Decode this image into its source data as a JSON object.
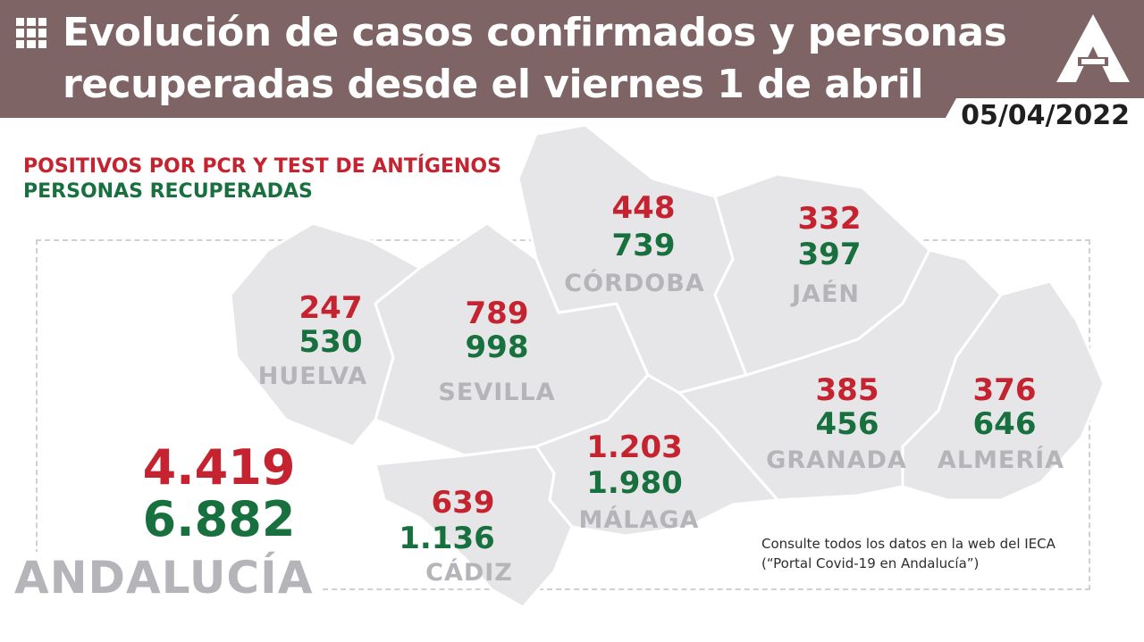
{
  "header": {
    "title": "Evolución de casos confirmados y personas recuperadas desde el viernes 1 de abril",
    "date": "05/04/2022",
    "menu_icon": "grid-icon",
    "logo_icon": "junta-andalucia-logo-icon"
  },
  "legend": {
    "positives": "POSITIVOS POR PCR Y TEST DE ANTÍGENOS",
    "recovered": "PERSONAS RECUPERADAS"
  },
  "colors": {
    "header": "#7e6464",
    "positives": "#c4232f",
    "recovered": "#17703d",
    "map": "#e6e6e8",
    "label": "#b4b4b9"
  },
  "provinces": {
    "huelva": {
      "name": "HUELVA",
      "positives": "247",
      "recovered": "530"
    },
    "sevilla": {
      "name": "SEVILLA",
      "positives": "789",
      "recovered": "998"
    },
    "cordoba": {
      "name": "CÓRDOBA",
      "positives": "448",
      "recovered": "739"
    },
    "jaen": {
      "name": "JAÉN",
      "positives": "332",
      "recovered": "397"
    },
    "granada": {
      "name": "GRANADA",
      "positives": "385",
      "recovered": "456"
    },
    "almeria": {
      "name": "ALMERÍA",
      "positives": "376",
      "recovered": "646"
    },
    "malaga": {
      "name": "MÁLAGA",
      "positives": "1.203",
      "recovered": "1.980"
    },
    "cadiz": {
      "name": "CÁDIZ",
      "positives": "639",
      "recovered": "1.136"
    }
  },
  "total": {
    "name": "ANDALUCÍA",
    "positives": "4.419",
    "recovered": "6.882"
  },
  "note": "Consulte todos los datos en la web del IECA (“Portal Covid-19 en Andalucía”)"
}
